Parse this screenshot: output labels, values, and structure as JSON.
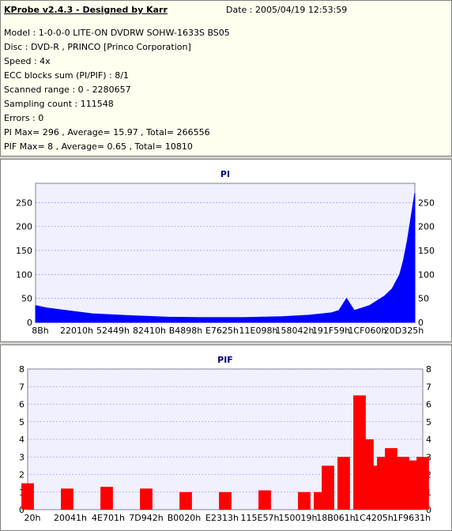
{
  "header": {
    "title": "KProbe v2.4.3 - Designed by Karr",
    "date": "Date : 2005/04/19 12:53:59",
    "lines": [
      "Model : 1-0-0-0 LITE-ON DVDRW SOHW-1633S BS05",
      "Disc : DVD-R , PRINCO [Princo Corporation]",
      "Speed : 4x",
      "ECC blocks sum (PI/PIF) : 8/1",
      "Scanned range : 0 - 2280657",
      "Sampling count : 111548",
      "Errors : 0",
      "PI Max= 296 , Average= 15.97 , Total= 266556",
      "PIF Max= 8 , Average= 0.65 , Total= 10810"
    ]
  },
  "chart_data": [
    {
      "type": "area",
      "title": "PI",
      "color": "#0000ff",
      "ylim": [
        0,
        290
      ],
      "yticks": [
        0,
        50,
        100,
        150,
        200,
        250
      ],
      "xtick_labels": [
        "8Bh",
        "22010h",
        "52449h",
        "82410h",
        "B4898h",
        "E7625h",
        "11E098h",
        "158042h",
        "191F59h",
        "1CF060h",
        "20D325h"
      ],
      "series": [
        {
          "x": [
            0,
            0.03,
            0.08,
            0.15,
            0.25,
            0.35,
            0.45,
            0.55,
            0.65,
            0.72,
            0.78,
            0.8,
            0.82,
            0.84,
            0.86,
            0.88,
            0.9,
            0.92,
            0.94,
            0.96,
            0.97,
            0.98,
            0.99,
            1.0
          ],
          "values": [
            35,
            30,
            25,
            18,
            14,
            11,
            10,
            10,
            12,
            15,
            20,
            25,
            50,
            25,
            30,
            35,
            45,
            55,
            70,
            100,
            130,
            170,
            220,
            270
          ]
        }
      ]
    },
    {
      "type": "bar",
      "title": "PIF",
      "color": "#ff0000",
      "ylim": [
        0,
        8
      ],
      "yticks": [
        0,
        1,
        2,
        3,
        4,
        5,
        6,
        7,
        8
      ],
      "xtick_labels": [
        "20h",
        "20041h",
        "4E701h",
        "7D942h",
        "B0020h",
        "E2313h",
        "115E57h",
        "150019h",
        "18B061h",
        "1C4205h",
        "1F9631h"
      ],
      "series": [
        {
          "x": [
            0,
            0.1,
            0.2,
            0.3,
            0.4,
            0.5,
            0.6,
            0.7,
            0.74,
            0.76,
            0.8,
            0.84,
            0.86,
            0.88,
            0.9,
            0.92,
            0.95,
            0.98,
            1.0
          ],
          "values": [
            1.5,
            1.2,
            1.3,
            1.2,
            1.0,
            1.0,
            1.1,
            1.0,
            1.0,
            2.5,
            3.0,
            6.5,
            4.0,
            2.5,
            3.0,
            3.5,
            3.0,
            2.8,
            3.0
          ]
        }
      ]
    }
  ]
}
